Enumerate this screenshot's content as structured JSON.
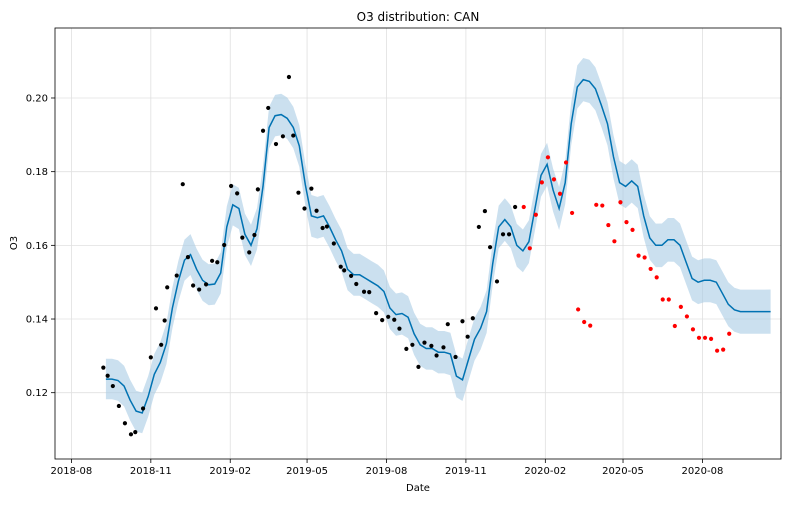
{
  "chart_data": {
    "type": "scatter",
    "title": "O3 distribution: CAN",
    "xlabel": "Date",
    "ylabel": "O3",
    "x_ticks": [
      "2018-08",
      "2018-11",
      "2019-02",
      "2019-05",
      "2019-08",
      "2019-11",
      "2020-02",
      "2020-05",
      "2020-08"
    ],
    "x_tick_dates": [
      "2018-08-01",
      "2018-11-01",
      "2019-02-01",
      "2019-05-01",
      "2019-08-01",
      "2019-11-01",
      "2020-02-01",
      "2020-05-01",
      "2020-08-01"
    ],
    "y_ticks": [
      "0.12",
      "0.14",
      "0.16",
      "0.18",
      "0.20"
    ],
    "xlim": [
      "2018-07-13",
      "2020-10-31"
    ],
    "ylim": [
      0.102,
      0.219
    ],
    "grid": true,
    "colors": {
      "band": "#a8cbe4",
      "forecast_line": "#0072b2",
      "actual_points": "#000000",
      "test_points": "#ff0000"
    },
    "series": [
      {
        "role": "forecast",
        "x": [
          "2018-09-10",
          "2018-09-17",
          "2018-09-24",
          "2018-10-01",
          "2018-10-08",
          "2018-10-15",
          "2018-10-22",
          "2018-10-29",
          "2018-11-05",
          "2018-11-12",
          "2018-11-19",
          "2018-11-26",
          "2018-12-03",
          "2018-12-10",
          "2018-12-17",
          "2018-12-24",
          "2018-12-31",
          "2019-01-07",
          "2019-01-14",
          "2019-01-21",
          "2019-01-28",
          "2019-02-04",
          "2019-02-11",
          "2019-02-18",
          "2019-02-25",
          "2019-03-04",
          "2019-03-11",
          "2019-03-18",
          "2019-03-25",
          "2019-04-01",
          "2019-04-08",
          "2019-04-15",
          "2019-04-22",
          "2019-04-29",
          "2019-05-06",
          "2019-05-13",
          "2019-05-20",
          "2019-05-27",
          "2019-06-03",
          "2019-06-10",
          "2019-06-17",
          "2019-06-24",
          "2019-07-01",
          "2019-07-08",
          "2019-07-15",
          "2019-07-22",
          "2019-07-29",
          "2019-08-05",
          "2019-08-12",
          "2019-08-19",
          "2019-08-26",
          "2019-09-02",
          "2019-09-09",
          "2019-09-16",
          "2019-09-23",
          "2019-09-30",
          "2019-10-07",
          "2019-10-14",
          "2019-10-21",
          "2019-10-28",
          "2019-11-04",
          "2019-11-11",
          "2019-11-18",
          "2019-11-25",
          "2019-12-02",
          "2019-12-09",
          "2019-12-16",
          "2019-12-23",
          "2019-12-30",
          "2020-01-06",
          "2020-01-13",
          "2020-01-20",
          "2020-01-27",
          "2020-02-03",
          "2020-02-10",
          "2020-02-17",
          "2020-02-24",
          "2020-03-02",
          "2020-03-09",
          "2020-03-16",
          "2020-03-23",
          "2020-03-30",
          "2020-04-06",
          "2020-04-13",
          "2020-04-20",
          "2020-04-27",
          "2020-05-04",
          "2020-05-11",
          "2020-05-18",
          "2020-05-25",
          "2020-06-01",
          "2020-06-08",
          "2020-06-15",
          "2020-06-22",
          "2020-06-29",
          "2020-07-06",
          "2020-07-13",
          "2020-07-20",
          "2020-07-27",
          "2020-08-03",
          "2020-08-10",
          "2020-08-17",
          "2020-08-24",
          "2020-08-31",
          "2020-09-07",
          "2020-09-14",
          "2020-09-21",
          "2020-09-28",
          "2020-10-05",
          "2020-10-12",
          "2020-10-19"
        ],
        "y": [
          0.1237,
          0.1237,
          0.1233,
          0.1218,
          0.118,
          0.115,
          0.1145,
          0.119,
          0.125,
          0.1282,
          0.1333,
          0.143,
          0.1503,
          0.156,
          0.1575,
          0.1535,
          0.1505,
          0.1493,
          0.1495,
          0.1525,
          0.165,
          0.171,
          0.17,
          0.163,
          0.16,
          0.1645,
          0.176,
          0.192,
          0.1952,
          0.1955,
          0.1945,
          0.192,
          0.187,
          0.1765,
          0.168,
          0.1675,
          0.168,
          0.165,
          0.1615,
          0.1585,
          0.1535,
          0.152,
          0.152,
          0.151,
          0.15,
          0.149,
          0.1475,
          0.143,
          0.1412,
          0.1415,
          0.1405,
          0.136,
          0.133,
          0.132,
          0.132,
          0.131,
          0.131,
          0.1305,
          0.1245,
          0.1235,
          0.129,
          0.1345,
          0.1375,
          0.142,
          0.155,
          0.165,
          0.167,
          0.165,
          0.16,
          0.1585,
          0.161,
          0.17,
          0.179,
          0.182,
          0.175,
          0.17,
          0.177,
          0.193,
          0.203,
          0.205,
          0.2045,
          0.2025,
          0.198,
          0.193,
          0.184,
          0.177,
          0.176,
          0.1775,
          0.176,
          0.168,
          0.162,
          0.16,
          0.16,
          0.1615,
          0.1615,
          0.16,
          0.1555,
          0.151,
          0.15,
          0.1505,
          0.1505,
          0.15,
          0.147,
          0.144,
          0.1425,
          0.142,
          0.142,
          0.142,
          0.142,
          0.142,
          0.142
        ]
      },
      {
        "role": "actual",
        "x": [
          "2018-09-07",
          "2018-09-12",
          "2018-09-18",
          "2018-09-25",
          "2018-10-02",
          "2018-10-09",
          "2018-10-14",
          "2018-10-23",
          "2018-11-01",
          "2018-11-07",
          "2018-11-13",
          "2018-11-17",
          "2018-11-20",
          "2018-12-01",
          "2018-12-08",
          "2018-12-14",
          "2018-12-20",
          "2018-12-27",
          "2019-01-04",
          "2019-01-11",
          "2019-01-17",
          "2019-01-25",
          "2019-02-02",
          "2019-02-09",
          "2019-02-15",
          "2019-02-23",
          "2019-03-01",
          "2019-03-05",
          "2019-03-11",
          "2019-03-17",
          "2019-03-26",
          "2019-04-03",
          "2019-04-10",
          "2019-04-15",
          "2019-04-21",
          "2019-04-28",
          "2019-05-06",
          "2019-05-12",
          "2019-05-19",
          "2019-05-24",
          "2019-06-01",
          "2019-06-09",
          "2019-06-13",
          "2019-06-21",
          "2019-06-27",
          "2019-07-06",
          "2019-07-12",
          "2019-07-20",
          "2019-07-27",
          "2019-08-03",
          "2019-08-10",
          "2019-08-16",
          "2019-08-24",
          "2019-08-31",
          "2019-09-07",
          "2019-09-14",
          "2019-09-22",
          "2019-09-28",
          "2019-10-06",
          "2019-10-11",
          "2019-10-20",
          "2019-10-28",
          "2019-11-03",
          "2019-11-09",
          "2019-11-16",
          "2019-11-23",
          "2019-11-29",
          "2019-12-07",
          "2019-12-14",
          "2019-12-21",
          "2019-12-28"
        ],
        "y": [
          0.1268,
          0.1246,
          0.1218,
          0.1164,
          0.1117,
          0.1087,
          0.1093,
          0.1157,
          0.1296,
          0.1429,
          0.133,
          0.1396,
          0.1486,
          0.1518,
          0.1766,
          0.1568,
          0.1491,
          0.148,
          0.1494,
          0.1558,
          0.1554,
          0.1601,
          0.1761,
          0.1741,
          0.1621,
          0.1581,
          0.1628,
          0.1752,
          0.1911,
          0.1973,
          0.1875,
          0.1896,
          0.2057,
          0.1898,
          0.1743,
          0.17,
          0.1754,
          0.1694,
          0.1647,
          0.1651,
          0.1605,
          0.1542,
          0.1532,
          0.1517,
          0.1495,
          0.1474,
          0.1473,
          0.1416,
          0.1397,
          0.1406,
          0.1398,
          0.1374,
          0.1319,
          0.133,
          0.127,
          0.1336,
          0.1327,
          0.1301,
          0.1323,
          0.1386,
          0.1297,
          0.1394,
          0.1352,
          0.1402,
          0.165,
          0.1693,
          0.1595,
          0.1502,
          0.163,
          0.163,
          0.1704
        ]
      },
      {
        "role": "test",
        "x": [
          "2020-01-07",
          "2020-01-14",
          "2020-01-21",
          "2020-01-28",
          "2020-02-04",
          "2020-02-11",
          "2020-02-18",
          "2020-02-25",
          "2020-03-03",
          "2020-03-10",
          "2020-03-17",
          "2020-03-24",
          "2020-03-31",
          "2020-04-07",
          "2020-04-14",
          "2020-04-21",
          "2020-04-28",
          "2020-05-05",
          "2020-05-12",
          "2020-05-19",
          "2020-05-26",
          "2020-06-02",
          "2020-06-09",
          "2020-06-16",
          "2020-06-23",
          "2020-06-30",
          "2020-07-07",
          "2020-07-14",
          "2020-07-21",
          "2020-07-28",
          "2020-08-04",
          "2020-08-11",
          "2020-08-18",
          "2020-08-25",
          "2020-09-01"
        ],
        "y": [
          0.1704,
          0.1592,
          0.1683,
          0.1771,
          0.1839,
          0.1779,
          0.174,
          0.1825,
          0.1688,
          0.1426,
          0.1392,
          0.1382,
          0.171,
          0.1708,
          0.1655,
          0.1611,
          0.1717,
          0.1663,
          0.1642,
          0.1572,
          0.1567,
          0.1536,
          0.1513,
          0.1453,
          0.1453,
          0.1381,
          0.1433,
          0.1407,
          0.1372,
          0.1349,
          0.1349,
          0.1346,
          0.1314,
          0.1317,
          0.136
        ]
      }
    ]
  }
}
